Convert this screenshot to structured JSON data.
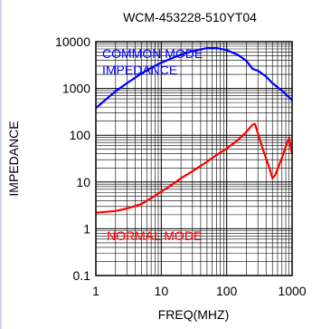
{
  "chart_data": {
    "type": "line",
    "title": "WCM-453228-510YT04",
    "xlabel": "FREQ(MHZ)",
    "ylabel": "IMPEDANCE",
    "xscale": "log",
    "yscale": "log",
    "xlim": [
      1,
      1000
    ],
    "ylim": [
      0.1,
      10000
    ],
    "grid": true,
    "x_ticks": [
      "1",
      "10",
      "100",
      "1000"
    ],
    "y_ticks": [
      "0.1",
      "1",
      "10",
      "100",
      "1000",
      "10000"
    ],
    "series": [
      {
        "name": "COMMON MODE IMPEDANCE",
        "name_lines": [
          "COMMON MODE",
          "IMPEDANCE"
        ],
        "color": "#0000ff",
        "x": [
          1,
          1.5,
          2,
          3,
          5,
          7,
          10,
          15,
          20,
          30,
          50,
          70,
          100,
          150,
          200,
          250,
          300,
          400,
          500,
          700,
          1000
        ],
        "y": [
          380,
          620,
          870,
          1300,
          2100,
          2750,
          3550,
          4500,
          5300,
          6300,
          7300,
          7300,
          6600,
          5200,
          3900,
          2600,
          2400,
          1800,
          1300,
          900,
          560
        ]
      },
      {
        "name": "NORMAL MODE",
        "name_lines": [
          "NORMAL MODE"
        ],
        "color": "#ff0000",
        "x": [
          1,
          2,
          3,
          5,
          7,
          10,
          15,
          20,
          30,
          50,
          70,
          100,
          150,
          200,
          250,
          270,
          300,
          350,
          400,
          450,
          500,
          550,
          600,
          700,
          800,
          900,
          1000
        ],
        "y": [
          2.2,
          2.4,
          2.7,
          3.4,
          4.5,
          6.2,
          9,
          12,
          17,
          27,
          38,
          52,
          80,
          118,
          170,
          175,
          110,
          55,
          32,
          20,
          12,
          14,
          19,
          33,
          58,
          85,
          40
        ]
      }
    ]
  }
}
